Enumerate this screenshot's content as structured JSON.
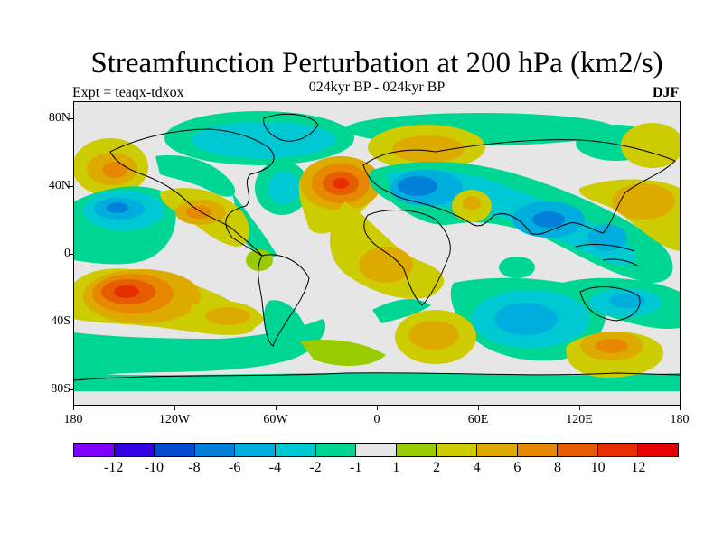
{
  "header": {
    "title": "Streamfunction Perturbation at 200 hPa (km2/s)",
    "subtitle": "024kyr BP - 024kyr BP",
    "expt": "Expt = teaqx-tdxox",
    "season": "DJF"
  },
  "map": {
    "projection": "cylindrical equidistant",
    "lon_range": [
      -180,
      180
    ],
    "lat_range": [
      -90,
      90
    ],
    "lat_labels": [
      "80N",
      "40N",
      "0",
      "40S",
      "80S"
    ],
    "lon_labels": [
      "180",
      "120W",
      "60W",
      "0",
      "60E",
      "120E",
      "180"
    ],
    "background_color": "#e6e6e6",
    "coastline_color": "#000000"
  },
  "legend": {
    "colors": [
      "#7f00ff",
      "#3300e6",
      "#004ccc",
      "#0080d9",
      "#00aedd",
      "#00c8d2",
      "#00d694",
      "#e6e6e6",
      "#99cc00",
      "#cccc00",
      "#ddaa00",
      "#e68800",
      "#e65c00",
      "#e62e00",
      "#e60000"
    ],
    "labels": [
      "-12",
      "-10",
      "-8",
      "-6",
      "-4",
      "-2",
      "-1",
      "1",
      "2",
      "4",
      "6",
      "8",
      "10",
      "12"
    ]
  },
  "chart_data": {
    "type": "heatmap",
    "title": "Streamfunction Perturbation at 200 hPa (km2/s)",
    "units": "km2/s",
    "contour_levels": [
      -12,
      -10,
      -8,
      -6,
      -4,
      -2,
      -1,
      1,
      2,
      4,
      6,
      8,
      10,
      12
    ],
    "features": [
      {
        "type": "high",
        "lon": -160,
        "lat": 48,
        "value": 7
      },
      {
        "type": "high",
        "lon": -150,
        "lat": -22,
        "value": 10
      },
      {
        "type": "low",
        "lon": -150,
        "lat": 25,
        "value": -7
      },
      {
        "type": "high",
        "lon": -105,
        "lat": 25,
        "value": 6
      },
      {
        "type": "low",
        "lon": -120,
        "lat": 60,
        "value": -4
      },
      {
        "type": "low",
        "lon": -80,
        "lat": 38,
        "value": -3
      },
      {
        "type": "high",
        "lon": -20,
        "lat": 40,
        "value": 11
      },
      {
        "type": "low",
        "lon": 25,
        "lat": 38,
        "value": -7
      },
      {
        "type": "low",
        "lon": 90,
        "lat": 30,
        "value": -4
      },
      {
        "type": "high",
        "lon": 25,
        "lat": 62,
        "value": 3
      },
      {
        "type": "high",
        "lon": 140,
        "lat": 35,
        "value": 4
      },
      {
        "type": "low",
        "lon": 85,
        "lat": -35,
        "value": -5
      },
      {
        "type": "high",
        "lon": 40,
        "lat": -45,
        "value": 5
      },
      {
        "type": "high",
        "lon": 140,
        "lat": -52,
        "value": 6
      },
      {
        "type": "low",
        "lon": 150,
        "lat": -25,
        "value": -5
      },
      {
        "type": "high",
        "lon": -120,
        "lat": -40,
        "value": 6
      }
    ]
  }
}
